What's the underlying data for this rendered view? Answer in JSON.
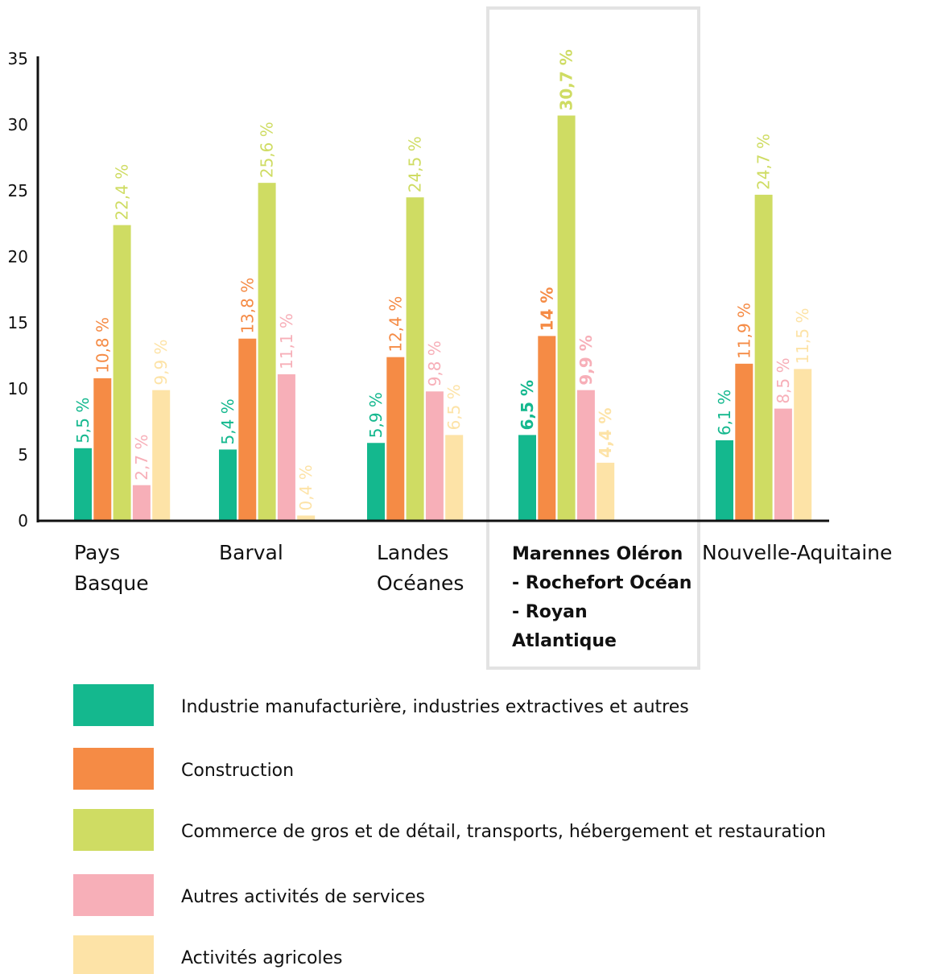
{
  "chart_data": {
    "type": "bar",
    "categories": [
      "Pays Basque",
      "Barval",
      "Landes Océanes",
      "Marennes Oléron - Rochefort Océan - Royan Atlantique",
      "Nouvelle-Aquitaine"
    ],
    "highlight_category": 3,
    "series": [
      {
        "name": "Industrie manufacturière, industries extractives et autres",
        "color": "#14b88e",
        "values": [
          5.5,
          5.4,
          5.9,
          6.5,
          6.1
        ],
        "value_labels": [
          "5,5 %",
          "5,4 %",
          "5,9 %",
          "6,5 %",
          "6,1 %"
        ]
      },
      {
        "name": "Construction",
        "color": "#f58b45",
        "values": [
          10.8,
          13.8,
          12.4,
          14,
          11.9
        ],
        "value_labels": [
          "10,8 %",
          "13,8 %",
          "12,4 %",
          "14 %",
          "11,9 %"
        ]
      },
      {
        "name": "Commerce de gros et de détail, transports, hébergement et restauration",
        "color": "#cfdc63",
        "values": [
          22.4,
          25.6,
          24.5,
          30.7,
          24.7
        ],
        "value_labels": [
          "22,4 %",
          "25,6 %",
          "24,5 %",
          "30,7 %",
          "24,7 %"
        ]
      },
      {
        "name": "Autres activités de services",
        "color": "#f7afb8",
        "values": [
          2.7,
          11.1,
          9.8,
          9.9,
          8.5
        ],
        "value_labels": [
          "2,7 %",
          "11,1 %",
          "9,8 %",
          "9,9 %",
          "8,5 %"
        ]
      },
      {
        "name": "Activités agricoles",
        "color": "#fde3a7",
        "values": [
          9.9,
          0.4,
          6.5,
          4.4,
          11.5
        ],
        "value_labels": [
          "9,9 %",
          "0,4 %",
          "6,5 %",
          "4,4 %",
          "11,5 %"
        ]
      }
    ],
    "ylim": [
      0,
      35
    ],
    "yticks": [
      0,
      5,
      10,
      15,
      20,
      25,
      30,
      35
    ],
    "grid": false
  }
}
